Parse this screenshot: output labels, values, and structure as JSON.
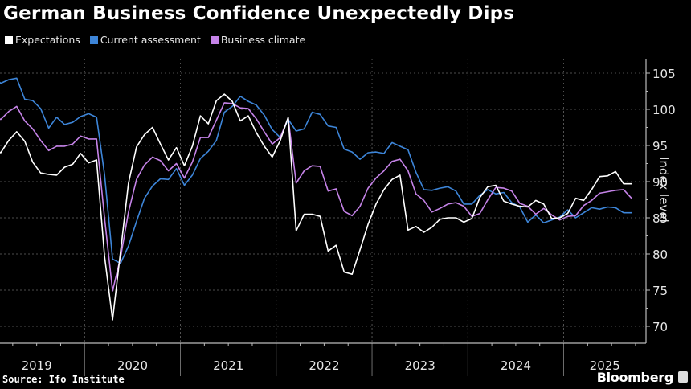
{
  "title": "German Business Confidence Unexpectedly Dips",
  "source": "Source: Ifo Institute",
  "brand": "Bloomberg",
  "colors": {
    "background": "#000000",
    "expectations": "#ffffff",
    "current_assessment": "#3d85d8",
    "business_climate": "#c583e8",
    "grid": "#666666",
    "axis": "#bbbbbb"
  },
  "chart_data": {
    "type": "line",
    "title": "German Business Confidence Unexpectedly Dips",
    "xlabel": "",
    "ylabel": "Index level",
    "ylim": [
      68,
      107
    ],
    "yticks": [
      70,
      75,
      80,
      85,
      90,
      95,
      100,
      105
    ],
    "x_tick_labels": [
      "2019",
      "2020",
      "2021",
      "2022",
      "2023",
      "2024",
      "2025"
    ],
    "x_start": "2019-01",
    "x_end": "2025-09",
    "frequency": "monthly",
    "grid": true,
    "legend_position": "top-left",
    "series": [
      {
        "name": "Expectations",
        "key": "expectations",
        "values": [
          94.6,
          94.0,
          95.7,
          96.9,
          95.6,
          92.7,
          91.2,
          91.0,
          90.9,
          92.0,
          92.4,
          93.9,
          92.6,
          93.0,
          79.7,
          70.9,
          80.3,
          89.8,
          94.8,
          96.5,
          97.5,
          95.2,
          93.0,
          94.7,
          92.2,
          94.9,
          99.1,
          98.0,
          101.2,
          102.1,
          101.1,
          98.4,
          99.1,
          96.8,
          94.9,
          93.4,
          95.7,
          98.9,
          83.2,
          85.5,
          85.5,
          85.2,
          80.4,
          81.2,
          77.5,
          77.2,
          80.6,
          84.1,
          86.9,
          88.9,
          90.3,
          90.9,
          83.3,
          83.8,
          83.0,
          83.7,
          84.8,
          85.0,
          85.0,
          84.4,
          84.9,
          87.8,
          89.3,
          89.5,
          87.3,
          86.9,
          86.6,
          86.5,
          87.4,
          86.9,
          84.9,
          85.0,
          85.6,
          87.7,
          87.4,
          88.9,
          90.7,
          90.8,
          91.4,
          89.7,
          89.7
        ]
      },
      {
        "name": "Current assessment",
        "key": "current_assessment",
        "values": [
          104.7,
          103.6,
          104.1,
          104.3,
          101.4,
          101.2,
          100.1,
          97.4,
          98.9,
          97.9,
          98.2,
          99.0,
          99.4,
          98.9,
          91.0,
          79.3,
          78.7,
          81.1,
          84.5,
          87.7,
          89.4,
          90.4,
          90.3,
          91.8,
          89.5,
          90.9,
          93.2,
          94.2,
          95.7,
          99.6,
          100.4,
          101.8,
          101.1,
          100.6,
          99.2,
          97.2,
          96.1,
          98.6,
          97.0,
          97.3,
          99.6,
          99.3,
          97.7,
          97.5,
          94.5,
          94.1,
          93.1,
          94.0,
          94.1,
          93.9,
          95.4,
          94.9,
          94.4,
          91.3,
          88.9,
          88.8,
          89.1,
          89.3,
          88.7,
          86.9,
          86.9,
          88.1,
          88.9,
          88.3,
          88.5,
          87.1,
          86.5,
          84.4,
          85.4,
          84.3,
          84.7,
          85.1,
          86.1,
          85.0,
          85.7,
          86.4,
          86.2,
          86.5,
          86.4,
          85.7,
          85.7
        ]
      },
      {
        "name": "Business climate",
        "key": "business_climate",
        "values": [
          99.3,
          98.6,
          99.7,
          100.4,
          98.4,
          97.3,
          95.7,
          94.3,
          94.9,
          94.9,
          95.2,
          96.3,
          95.9,
          95.9,
          85.0,
          74.9,
          79.5,
          85.8,
          90.3,
          92.3,
          93.4,
          92.9,
          91.5,
          92.5,
          90.5,
          92.7,
          96.1,
          96.1,
          98.5,
          100.9,
          100.8,
          100.2,
          100.1,
          98.7,
          96.9,
          95.2,
          96.1,
          98.8,
          89.8,
          91.5,
          92.2,
          92.1,
          88.7,
          89.0,
          85.9,
          85.3,
          86.6,
          89.1,
          90.5,
          91.5,
          92.8,
          93.1,
          91.5,
          88.3,
          87.4,
          85.8,
          86.3,
          86.9,
          87.1,
          86.6,
          85.2,
          85.6,
          87.5,
          89.2,
          89.1,
          88.7,
          87.0,
          86.6,
          85.5,
          86.3,
          85.4,
          84.7,
          85.2,
          85.3,
          86.7,
          87.4,
          88.4,
          88.6,
          88.8,
          88.9,
          87.7
        ]
      }
    ]
  }
}
